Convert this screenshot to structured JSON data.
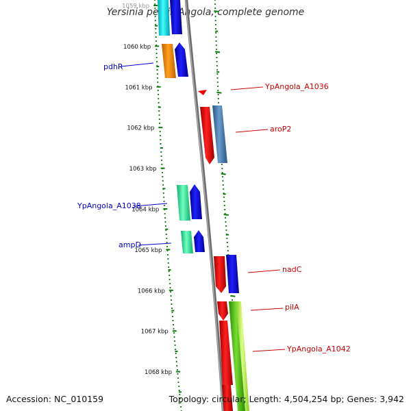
{
  "title": "Yersinia pestis Angola, complete genome",
  "footer": {
    "accession": "Accession: NC_010159",
    "summary": "Topology: circular; Length: 4,504,254 bp; Genes: 3,942"
  },
  "ruler": {
    "ticks": [
      {
        "label": "1059 kbp"
      },
      {
        "label": "1060 kbp"
      },
      {
        "label": "1061 kbp"
      },
      {
        "label": "1062 kbp"
      },
      {
        "label": "1063 kbp"
      },
      {
        "label": "1064 kbp"
      },
      {
        "label": "1065 kbp"
      },
      {
        "label": "1066 kbp"
      },
      {
        "label": "1067 kbp"
      },
      {
        "label": "1068 kbp"
      }
    ]
  },
  "gene_labels": {
    "left": [
      {
        "text": "pdhR",
        "color": "#0000cc"
      },
      {
        "text": "YpAngola_A1038",
        "color": "#0000cc"
      },
      {
        "text": "ampD",
        "color": "#0000cc"
      }
    ],
    "right": [
      {
        "text": "YpAngola_A1036",
        "color": "#cc0000"
      },
      {
        "text": "aroP2",
        "color": "#cc0000"
      },
      {
        "text": "nadC",
        "color": "#cc0000"
      },
      {
        "text": "pilA",
        "color": "#cc0000"
      },
      {
        "text": "YpAngola_A1042",
        "color": "#cc0000"
      }
    ]
  },
  "colors": {
    "backbone": "#808080",
    "dots": "#0a7a0a",
    "blue": "#0000ee",
    "red": "#ee0000",
    "orange": "#ff8c00",
    "cyan": "#00e5ee",
    "steel": "#4682b4",
    "aqua": "#3cf0a8",
    "green": "#55cc11",
    "lime": "#bbff55"
  }
}
